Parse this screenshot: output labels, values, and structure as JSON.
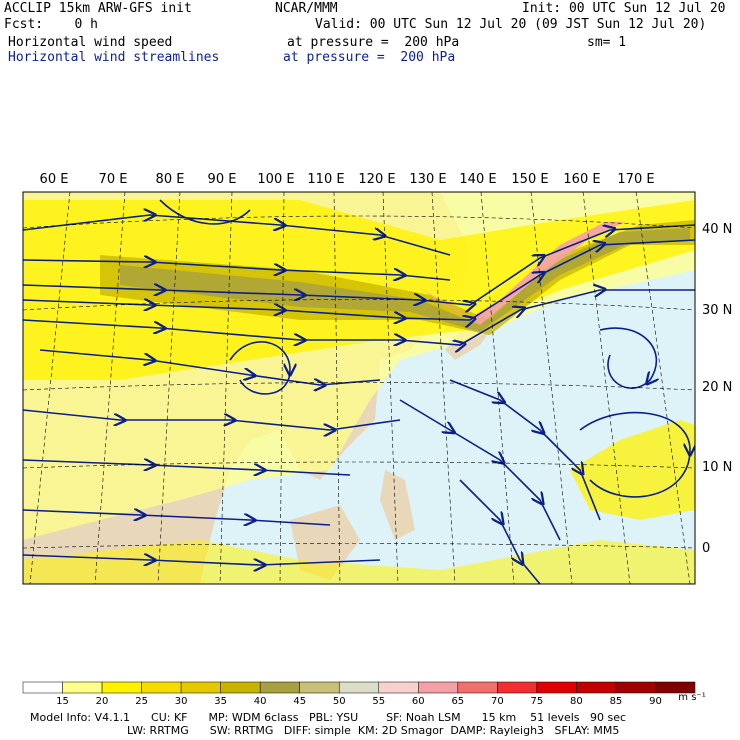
{
  "header": {
    "model": "ACCLIP 15km ARW-GFS init",
    "org": "NCAR/MMM",
    "init": "Init: 00 UTC Sun 12 Jul 20",
    "fcst": "Fcst:    0 h",
    "valid": "Valid: 00 UTC Sun 12 Jul 20 (09 JST Sun 12 Jul 20)",
    "field1": "Horizontal wind speed",
    "field1_level": "at pressure =  200 hPa",
    "smoothing": "sm= 1",
    "field2": "Horizontal wind streamlines",
    "field2_level": "at pressure =  200 hPa"
  },
  "map": {
    "lon_labels": [
      "60 E",
      "70 E",
      "80 E",
      "90 E",
      "100 E",
      "110 E",
      "120 E",
      "130 E",
      "140 E",
      "150 E",
      "160 E",
      "170 E"
    ],
    "lat_labels": [
      "40 N",
      "30 N",
      "20 N",
      "10 N",
      "0"
    ],
    "colors": {
      "land": "#e8d7b8",
      "ocean": "#ddf3f8",
      "streamline": "#0a1f8c",
      "grid": "#000000"
    }
  },
  "colorbar": {
    "levels": [
      "15",
      "20",
      "25",
      "30",
      "35",
      "40",
      "45",
      "50",
      "55",
      "60",
      "65",
      "70",
      "75",
      "80",
      "85",
      "90"
    ],
    "unit": "m s⁻¹",
    "colors": [
      "#ffffff",
      "#ffff8a",
      "#fff200",
      "#f4dc00",
      "#e6c800",
      "#c8b400",
      "#a8a040",
      "#c8c078",
      "#dcdcc8",
      "#f8d0d0",
      "#f4a0a8",
      "#f07070",
      "#f03030",
      "#e00000",
      "#c00000",
      "#a00000",
      "#800000"
    ]
  },
  "footer": {
    "line1": "Model Info: V4.1.1      CU: KF      MP: WDM 6class   PBL: YSU        SF: Noah LSM      15 km    51 levels   90 sec",
    "line2": "LW: RRTMG      SW: RRTMG   DIFF: simple  KM: 2D Smagor  DAMP: Rayleigh3   SFLAY: MM5"
  }
}
